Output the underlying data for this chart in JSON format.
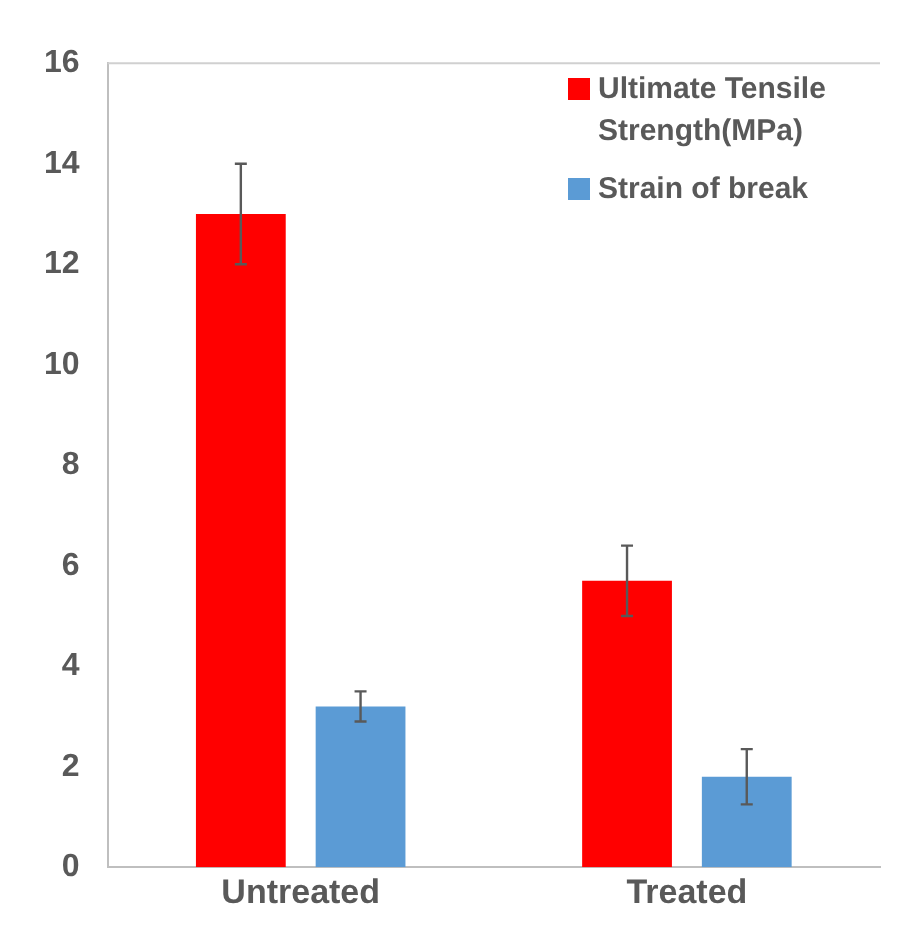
{
  "chart_data": {
    "type": "bar",
    "categories": [
      "Untreated",
      "Treated"
    ],
    "series": [
      {
        "name": "Ultimate Tensile Strength(MPa)",
        "color": "#ff0000",
        "values": [
          13,
          5.7
        ],
        "errors": [
          1,
          0.7
        ]
      },
      {
        "name": "Strain of break",
        "color": "#5b9bd5",
        "values": [
          3.2,
          1.8
        ],
        "errors": [
          0.3,
          0.55
        ]
      }
    ],
    "ylim": [
      0,
      16
    ],
    "yticks": [
      0,
      2,
      4,
      6,
      8,
      10,
      12,
      14,
      16
    ],
    "grid": false,
    "legend": "top right"
  }
}
